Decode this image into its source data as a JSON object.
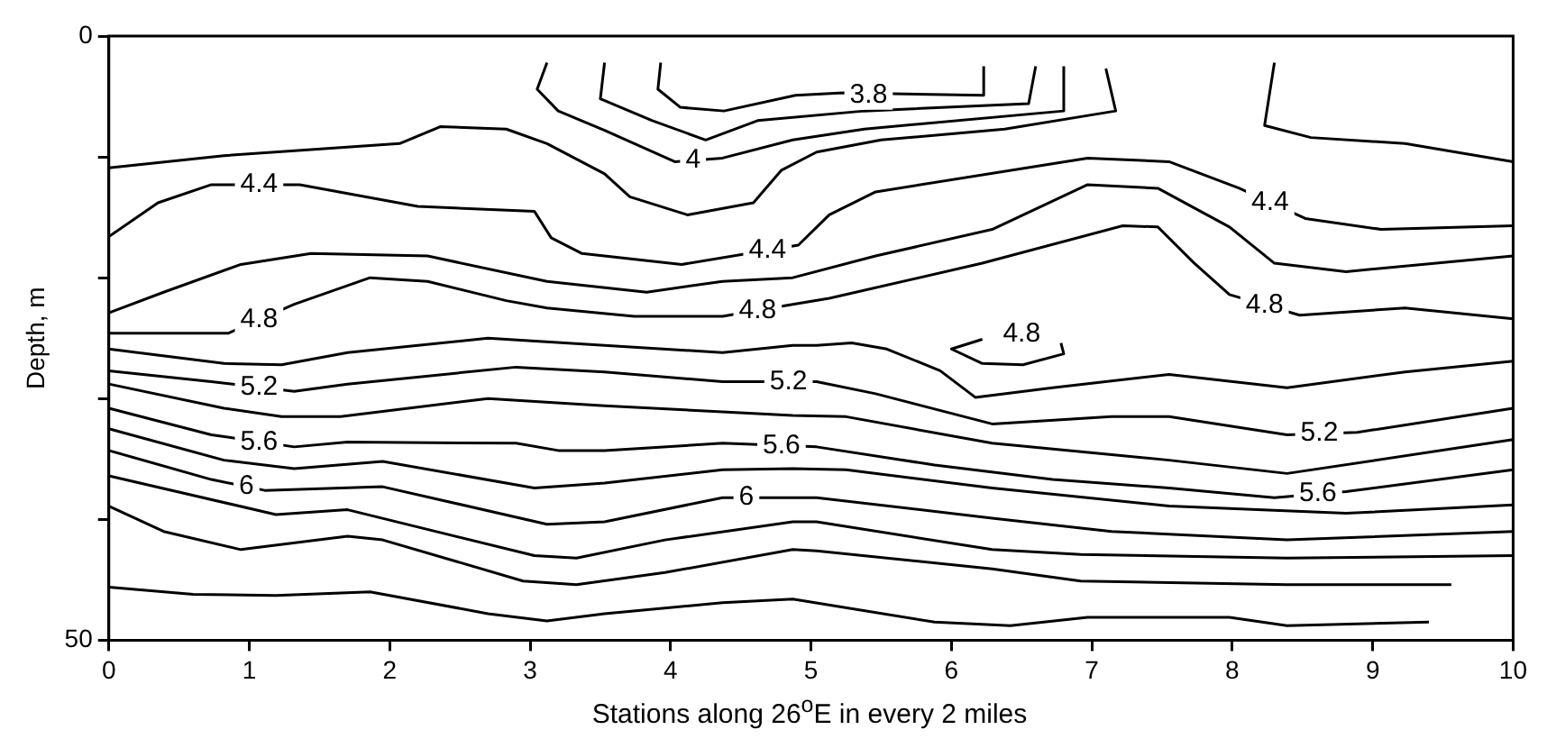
{
  "chart_data": {
    "type": "line",
    "xlabel": "Stations along 26$^{o}$E in every 2 miles",
    "ylabel": "Depth, m",
    "xlim": [
      0,
      10
    ],
    "xticks": [
      0,
      1,
      2,
      3,
      4,
      5,
      6,
      7,
      8,
      9,
      10
    ],
    "ylim": [
      50,
      0
    ],
    "yticks": [
      0,
      {
        "value": 10,
        "label": null
      },
      {
        "value": 20,
        "label": null
      },
      {
        "value": 30,
        "label": null
      },
      {
        "value": 40,
        "label": null
      },
      50
    ],
    "grid": false,
    "legend": false,
    "marker": "none",
    "line_style": "solid",
    "series": [
      {
        "color": "#000000",
        "x": [
          3.93,
          3.91,
          4.07,
          4.38,
          4.89,
          5.23,
          6.23,
          6.23
        ],
        "values": [
          2.2,
          4.4,
          5.9,
          6.2,
          4.9,
          4.7,
          4.9,
          2.5
        ]
      },
      {
        "color": "#000000",
        "x": [
          3.53,
          3.5,
          3.87,
          4.25,
          4.62,
          5.38,
          6.55,
          6.6
        ],
        "values": [
          2.2,
          5.2,
          7.0,
          8.6,
          7.0,
          6.2,
          5.6,
          2.5
        ]
      },
      {
        "color": "#000000",
        "x": [
          3.12,
          3.05,
          3.2,
          3.53,
          4.03,
          4.37,
          4.87,
          5.38,
          6.8,
          6.8
        ],
        "values": [
          2.2,
          4.4,
          6.2,
          7.8,
          10.4,
          10.1,
          8.6,
          7.7,
          6.2,
          2.5
        ]
      },
      {
        "color": "#000000",
        "x": [
          0,
          0.82,
          2.07,
          2.36,
          2.83,
          3.12,
          3.53,
          3.71,
          4.12,
          4.59,
          4.79,
          5.04,
          5.5,
          6.38,
          7.17,
          7.1
        ],
        "values": [
          10.9,
          9.9,
          8.9,
          7.5,
          7.7,
          8.9,
          11.4,
          13.3,
          14.8,
          13.8,
          11.1,
          9.6,
          8.6,
          7.7,
          6.2,
          2.7
        ]
      },
      {
        "color": "#000000",
        "x": [
          8.3,
          8.23,
          8.56,
          9.23,
          10
        ],
        "values": [
          2.2,
          7.4,
          8.4,
          8.9,
          10.4
        ]
      },
      {
        "color": "#000000",
        "x": [
          0,
          0.35,
          0.73,
          1.36,
          2.2,
          3.03,
          3.15,
          3.37,
          4.08,
          4.91,
          5.13,
          5.46,
          6.97,
          7.55,
          8.05,
          8.52,
          9.06,
          10
        ],
        "values": [
          16.6,
          13.8,
          12.3,
          12.3,
          14.1,
          14.5,
          16.7,
          18.0,
          18.9,
          17.3,
          14.8,
          12.9,
          10.1,
          10.4,
          12.6,
          15.1,
          16.0,
          15.7
        ]
      },
      {
        "color": "#000000",
        "x": [
          0,
          0.39,
          0.94,
          1.44,
          2.27,
          3.12,
          3.83,
          4.37,
          4.87,
          5.46,
          6.29,
          6.97,
          7.47,
          7.98,
          8.3,
          8.81,
          10
        ],
        "values": [
          22.9,
          21.2,
          18.9,
          18.0,
          18.2,
          20.3,
          21.2,
          20.3,
          20.0,
          18.2,
          16.0,
          12.3,
          12.6,
          15.8,
          18.8,
          19.5,
          18.2
        ]
      },
      {
        "color": "#000000",
        "x": [
          0,
          0.85,
          1.32,
          1.86,
          2.27,
          2.83,
          3.12,
          3.74,
          4.37,
          4.87,
          5.13,
          6.22,
          7.22,
          7.47,
          7.73,
          7.98,
          8.48,
          9.23,
          10
        ],
        "values": [
          24.6,
          24.6,
          22.2,
          20.0,
          20.3,
          21.9,
          22.5,
          23.2,
          23.2,
          22.2,
          21.7,
          18.8,
          15.7,
          15.8,
          18.8,
          21.4,
          23.1,
          22.5,
          23.4
        ]
      },
      {
        "color": "#000000",
        "x": [
          6.22,
          6.0,
          6.22,
          6.51,
          6.8,
          6.78
        ],
        "values": [
          25.1,
          25.9,
          27.1,
          27.2,
          26.3,
          25.4
        ]
      },
      {
        "color": "#000000",
        "x": [
          0,
          0.82,
          1.23,
          1.7,
          2.7,
          3.53,
          4.37,
          4.87,
          5.04,
          5.29,
          5.54,
          5.92,
          6.17,
          6.72,
          7.55,
          8.39,
          9.23,
          10
        ],
        "values": [
          25.9,
          27.1,
          27.2,
          26.2,
          25.0,
          25.6,
          26.2,
          25.6,
          25.6,
          25.4,
          25.9,
          27.7,
          29.9,
          29.1,
          28.0,
          29.1,
          27.8,
          26.9
        ]
      },
      {
        "color": "#000000",
        "x": [
          0,
          0.73,
          1.32,
          1.7,
          2.9,
          3.53,
          4.37,
          5.04,
          5.46,
          6.29,
          7.14,
          7.55,
          8.39,
          8.89,
          10
        ],
        "values": [
          27.7,
          28.6,
          29.4,
          28.8,
          27.4,
          27.8,
          28.6,
          28.6,
          29.6,
          32.1,
          31.5,
          31.5,
          33.0,
          32.8,
          30.8
        ]
      },
      {
        "color": "#000000",
        "x": [
          0,
          0.82,
          1.23,
          1.65,
          2.7,
          3.53,
          4.37,
          4.87,
          5.25,
          6.29,
          7.55,
          8.39,
          10
        ],
        "values": [
          28.8,
          30.8,
          31.5,
          31.5,
          30.0,
          30.6,
          31.1,
          31.4,
          31.5,
          33.7,
          35.1,
          36.2,
          33.4
        ]
      },
      {
        "color": "#000000",
        "x": [
          0,
          0.73,
          1.32,
          1.7,
          2.9,
          3.2,
          3.53,
          4.37,
          5.04,
          5.88,
          6.72,
          7.55,
          8.3,
          8.81,
          10
        ],
        "values": [
          30.8,
          33.0,
          34.0,
          33.6,
          33.7,
          34.3,
          34.3,
          33.7,
          34.0,
          35.5,
          36.7,
          37.4,
          38.2,
          37.7,
          35.9
        ]
      },
      {
        "color": "#000000",
        "x": [
          0,
          0.82,
          1.32,
          1.95,
          3.03,
          3.53,
          4.37,
          4.87,
          5.25,
          6.29,
          7.55,
          8.81,
          10
        ],
        "values": [
          32.5,
          35.1,
          35.8,
          35.2,
          37.4,
          37.0,
          35.9,
          35.8,
          35.9,
          37.4,
          38.9,
          39.5,
          38.8
        ]
      },
      {
        "color": "#000000",
        "x": [
          0,
          0.73,
          1.11,
          1.95,
          3.12,
          3.53,
          4.37,
          5.04,
          6.29,
          7.14,
          8.39,
          10
        ],
        "values": [
          34.3,
          36.7,
          37.6,
          37.3,
          40.4,
          40.2,
          38.2,
          38.2,
          39.9,
          41.0,
          41.7,
          41.0
        ]
      },
      {
        "color": "#000000",
        "x": [
          0,
          1.19,
          1.7,
          3.03,
          3.33,
          3.96,
          4.87,
          5.04,
          6.29,
          6.92,
          8.39,
          10
        ],
        "values": [
          36.4,
          39.6,
          39.2,
          43.0,
          43.2,
          41.7,
          40.2,
          40.2,
          42.5,
          42.9,
          43.2,
          43.0
        ]
      },
      {
        "color": "#000000",
        "x": [
          0,
          0.39,
          0.94,
          1.7,
          1.95,
          2.95,
          3.33,
          3.96,
          4.87,
          5.04,
          6.29,
          6.92,
          8.39,
          9.56
        ],
        "values": [
          38.9,
          41.0,
          42.5,
          41.4,
          41.7,
          45.1,
          45.4,
          44.4,
          42.5,
          42.6,
          44.1,
          45.1,
          45.4,
          45.4
        ]
      },
      {
        "color": "#000000",
        "x": [
          0,
          0.6,
          1.19,
          1.86,
          2.7,
          3.12,
          3.53,
          4.37,
          4.87,
          5.88,
          6.42,
          6.97,
          7.98,
          8.39,
          9.4
        ],
        "values": [
          45.6,
          46.2,
          46.3,
          46.0,
          47.8,
          48.4,
          47.8,
          46.9,
          46.6,
          48.5,
          48.8,
          48.1,
          48.1,
          48.8,
          48.5
        ]
      }
    ],
    "annotations": [
      {
        "text": "3.8",
        "x": 5.41,
        "y": 4.9
      },
      {
        "text": "4",
        "x": 4.16,
        "y": 10.3
      },
      {
        "text": "4.4",
        "x": 1.07,
        "y": 12.3
      },
      {
        "text": "4.4",
        "x": 4.69,
        "y": 17.7
      },
      {
        "text": "4.4",
        "x": 8.27,
        "y": 13.8
      },
      {
        "text": "4.8",
        "x": 1.07,
        "y": 23.5
      },
      {
        "text": "4.8",
        "x": 4.62,
        "y": 22.7
      },
      {
        "text": "4.8",
        "x": 6.5,
        "y": 24.7
      },
      {
        "text": "4.8",
        "x": 8.23,
        "y": 22.3
      },
      {
        "text": "5.2",
        "x": 1.07,
        "y": 29.1
      },
      {
        "text": "5.2",
        "x": 4.84,
        "y": 28.6
      },
      {
        "text": "5.2",
        "x": 8.62,
        "y": 32.9
      },
      {
        "text": "5.6",
        "x": 1.07,
        "y": 33.6
      },
      {
        "text": "5.6",
        "x": 4.79,
        "y": 33.9
      },
      {
        "text": "5.6",
        "x": 8.61,
        "y": 37.9
      },
      {
        "text": "6",
        "x": 0.98,
        "y": 37.3
      },
      {
        "text": "6",
        "x": 4.54,
        "y": 38.2
      }
    ]
  }
}
